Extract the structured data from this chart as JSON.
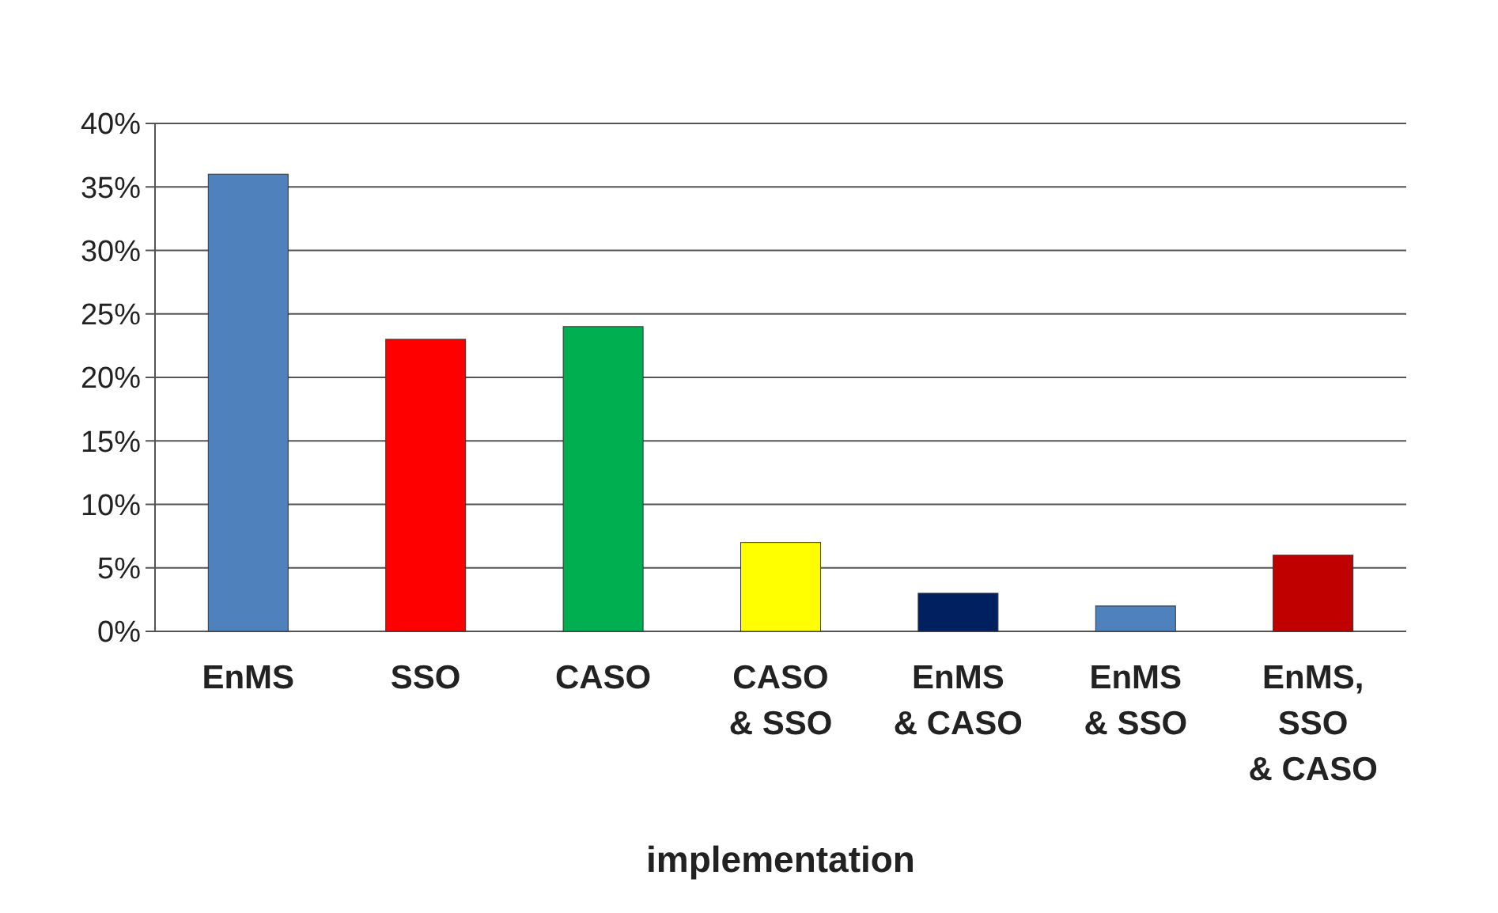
{
  "chart_data": {
    "type": "bar",
    "xlabel": "implementation",
    "categories": [
      "EnMS",
      "SSO",
      "CASO",
      "CASO & SSO",
      "EnMS & CASO",
      "EnMS & SSO",
      "EnMS, SSO & CASO"
    ],
    "values": [
      36,
      23,
      24,
      7,
      3,
      2,
      6
    ],
    "colors": [
      "#4f81bd",
      "#ff0000",
      "#00b050",
      "#ffff00",
      "#002060",
      "#4f81bd",
      "#c00000"
    ],
    "ylim": [
      0,
      40
    ],
    "yticks": [
      {
        "value": 0,
        "label": "0%"
      },
      {
        "value": 5,
        "label": "5%"
      },
      {
        "value": 10,
        "label": "10%"
      },
      {
        "value": 15,
        "label": "15%"
      },
      {
        "value": 20,
        "label": "20%"
      },
      {
        "value": 25,
        "label": "25%"
      },
      {
        "value": 30,
        "label": "30%"
      },
      {
        "value": 35,
        "label": "35%"
      },
      {
        "value": 40,
        "label": "40%"
      }
    ],
    "grid": "y"
  }
}
